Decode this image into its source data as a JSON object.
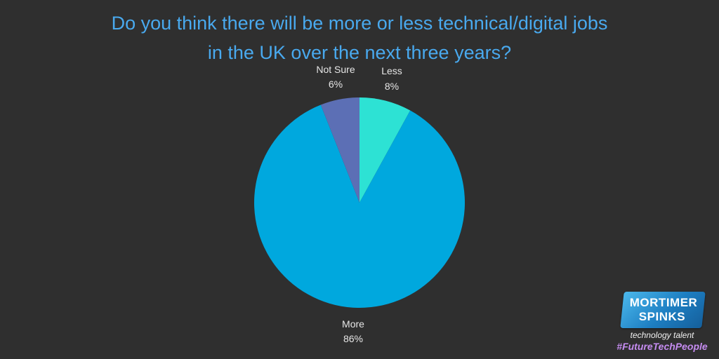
{
  "chart_data": {
    "type": "pie",
    "title_lines": [
      "Do you think there will be more or less technical/digital jobs",
      "in the UK over the next three years?"
    ],
    "slices": [
      {
        "label": "Less",
        "value": 8,
        "value_label": "8%",
        "color": "#2de2d4"
      },
      {
        "label": "More",
        "value": 86,
        "value_label": "86%",
        "color": "#00a8de"
      },
      {
        "label": "Not Sure",
        "value": 6,
        "value_label": "6%",
        "color": "#5c6fb5"
      }
    ],
    "start_angle": "12 o'clock",
    "direction": "clockwise"
  },
  "logo": {
    "line1": "MORTIMER",
    "line2": "SPINKS",
    "tagline": "technology talent",
    "hashtag": "#FutureTechPeople"
  },
  "colors": {
    "background": "#2f2f2f",
    "title": "#49a9ee",
    "label": "#e6e6e6"
  }
}
